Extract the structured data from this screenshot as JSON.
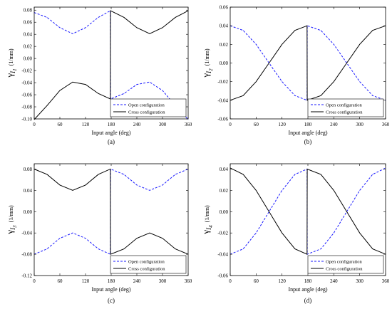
{
  "legend_placement": "bottom-right",
  "chart_data": [
    {
      "type": "line",
      "panel_label": "(a)",
      "xlabel": "Input angle (deg)",
      "ylabel": {
        "symbol": "γ",
        "sub": "I",
        "subsub": "1",
        "unit": "(1/mm)"
      },
      "xlim": [
        0,
        360
      ],
      "ylim": [
        -0.1,
        0.085
      ],
      "xticks": [
        0,
        60,
        120,
        180,
        240,
        300,
        360
      ],
      "yticks": [
        -0.1,
        -0.08,
        -0.06,
        -0.04,
        -0.02,
        0.0,
        0.02,
        0.04,
        0.06,
        0.08
      ],
      "ytick_labels": [
        "-0.10",
        "-0.08",
        "-0.06",
        "-0.04",
        "-0.02",
        "0.00",
        "0.02",
        "0.04",
        "0.06",
        "0.08"
      ],
      "grid": false,
      "series": [
        {
          "name": "Open configuration",
          "style": "dashed",
          "color": "#1a1aff",
          "x": [
            0,
            30,
            60,
            90,
            120,
            150,
            178,
            178.5,
            210,
            240,
            270,
            300,
            330,
            360
          ],
          "y": [
            0.076,
            0.068,
            0.051,
            0.041,
            0.051,
            0.068,
            0.079,
            -0.067,
            -0.058,
            -0.043,
            -0.039,
            -0.053,
            -0.078,
            -0.101
          ]
        },
        {
          "name": "Cross configuration",
          "style": "solid",
          "color": "#000000",
          "x": [
            0,
            30,
            60,
            90,
            120,
            150,
            178,
            178.5,
            210,
            240,
            270,
            300,
            330,
            360
          ],
          "y": [
            -0.101,
            -0.078,
            -0.053,
            -0.039,
            -0.043,
            -0.058,
            -0.067,
            0.079,
            0.068,
            0.051,
            0.041,
            0.051,
            0.068,
            0.079
          ]
        }
      ]
    },
    {
      "type": "line",
      "panel_label": "(b)",
      "xlabel": "Input angle (deg)",
      "ylabel": {
        "symbol": "γ",
        "sub": "I",
        "subsub": "2",
        "unit": "(1/mm)"
      },
      "xlim": [
        0,
        360
      ],
      "ylim": [
        -0.06,
        0.06
      ],
      "xticks": [
        0,
        60,
        120,
        180,
        240,
        300,
        360
      ],
      "yticks": [
        -0.06,
        -0.04,
        -0.02,
        0.0,
        0.02,
        0.04,
        0.06
      ],
      "ytick_labels": [
        "-0.06",
        "-0.04",
        "-0.02",
        "0.00",
        "0.02",
        "0.04",
        "0.06"
      ],
      "grid": false,
      "series": [
        {
          "name": "Open configuration",
          "style": "dashed",
          "color": "#1a1aff",
          "x": [
            0,
            30,
            60,
            90,
            120,
            150,
            178,
            178.5,
            210,
            240,
            270,
            300,
            330,
            360
          ],
          "y": [
            0.04,
            0.035,
            0.02,
            0.0,
            -0.02,
            -0.035,
            -0.04,
            0.04,
            0.035,
            0.02,
            0.0,
            -0.02,
            -0.035,
            -0.04
          ]
        },
        {
          "name": "Cross configuration",
          "style": "solid",
          "color": "#000000",
          "x": [
            0,
            30,
            60,
            90,
            120,
            150,
            178,
            178.5,
            210,
            240,
            270,
            300,
            330,
            360
          ],
          "y": [
            -0.04,
            -0.035,
            -0.02,
            0.0,
            0.02,
            0.035,
            0.04,
            -0.04,
            -0.035,
            -0.02,
            0.0,
            0.02,
            0.035,
            0.04
          ]
        }
      ]
    },
    {
      "type": "line",
      "panel_label": "(c)",
      "xlabel": "Input angle (deg)",
      "ylabel": {
        "symbol": "γ",
        "sub": "I",
        "subsub": "3",
        "unit": "(1/mm)"
      },
      "xlim": [
        0,
        360
      ],
      "ylim": [
        -0.12,
        0.09
      ],
      "xticks": [
        0,
        60,
        120,
        180,
        240,
        300,
        360
      ],
      "yticks": [
        -0.12,
        -0.08,
        -0.04,
        0.0,
        0.04,
        0.08
      ],
      "ytick_labels": [
        "-0.12",
        "-0.08",
        "-0.04",
        "0.00",
        "0.04",
        "0.08"
      ],
      "grid": false,
      "series": [
        {
          "name": "Open configuration",
          "style": "dashed",
          "color": "#1a1aff",
          "x": [
            0,
            30,
            60,
            90,
            120,
            150,
            178,
            178.5,
            210,
            240,
            270,
            300,
            330,
            360
          ],
          "y": [
            -0.08,
            -0.07,
            -0.05,
            -0.04,
            -0.05,
            -0.07,
            -0.08,
            0.08,
            0.07,
            0.05,
            0.04,
            0.05,
            0.07,
            0.08
          ]
        },
        {
          "name": "Cross configuration",
          "style": "solid",
          "color": "#000000",
          "x": [
            0,
            30,
            60,
            90,
            120,
            150,
            178,
            178.5,
            210,
            240,
            270,
            300,
            330,
            360
          ],
          "y": [
            0.08,
            0.07,
            0.05,
            0.04,
            0.05,
            0.07,
            0.08,
            -0.08,
            -0.07,
            -0.05,
            -0.04,
            -0.05,
            -0.07,
            -0.08
          ]
        }
      ]
    },
    {
      "type": "line",
      "panel_label": "(d)",
      "xlabel": "Input angle (deg)",
      "ylabel": {
        "symbol": "γ",
        "sub": "I",
        "subsub": "4",
        "unit": "(1/mm)"
      },
      "xlim": [
        0,
        360
      ],
      "ylim": [
        -0.06,
        0.045
      ],
      "xticks": [
        0,
        60,
        120,
        180,
        240,
        300,
        360
      ],
      "yticks": [
        -0.06,
        -0.04,
        -0.02,
        0.0,
        0.02,
        0.04
      ],
      "ytick_labels": [
        "-0.06",
        "-0.04",
        "-0.02",
        "0.00",
        "0.02",
        "0.04"
      ],
      "grid": false,
      "series": [
        {
          "name": "Open configuration",
          "style": "dashed",
          "color": "#1a1aff",
          "x": [
            0,
            30,
            60,
            90,
            120,
            150,
            178,
            178.5,
            210,
            240,
            270,
            300,
            330,
            360
          ],
          "y": [
            -0.04,
            -0.035,
            -0.02,
            0.0,
            0.02,
            0.035,
            0.04,
            -0.04,
            -0.035,
            -0.02,
            0.0,
            0.02,
            0.035,
            0.041
          ]
        },
        {
          "name": "Cross configuration",
          "style": "solid",
          "color": "#000000",
          "x": [
            0,
            30,
            60,
            90,
            120,
            150,
            178,
            178.5,
            210,
            240,
            270,
            300,
            330,
            360
          ],
          "y": [
            0.041,
            0.035,
            0.02,
            0.0,
            -0.02,
            -0.035,
            -0.04,
            0.04,
            0.035,
            0.02,
            0.0,
            -0.02,
            -0.035,
            -0.04
          ]
        }
      ]
    }
  ]
}
